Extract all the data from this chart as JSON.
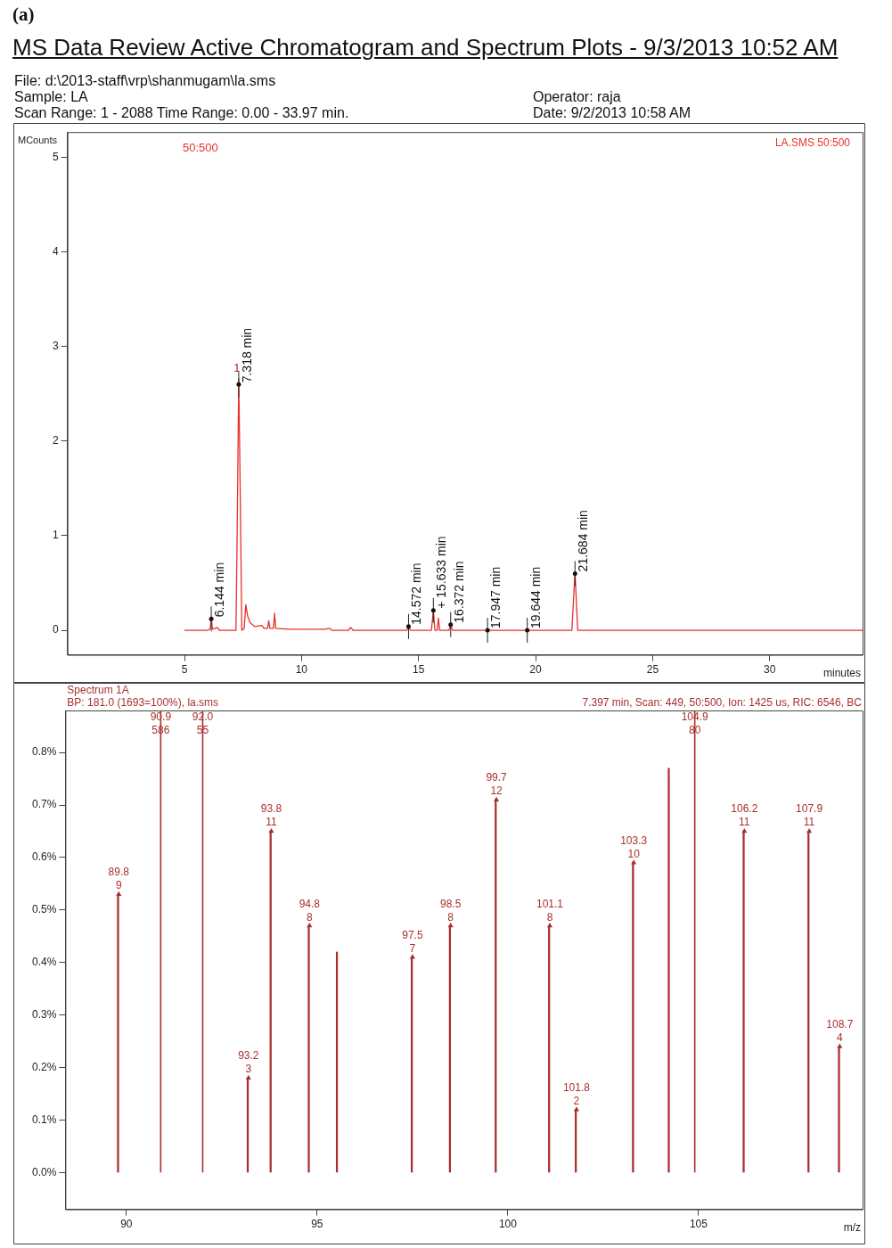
{
  "chart_data": [
    {
      "type": "line",
      "title": "MS Data Review Active Chromatogram and Spectrum Plots - 9/3/2013 10:52 AM",
      "xlabel": "minutes",
      "ylabel": "MCounts",
      "series": [
        {
          "name": "LA.SMS 50:500",
          "color": "#e8302c",
          "x": [
            5.0,
            6.0,
            6.1,
            6.144,
            6.2,
            6.4,
            6.5,
            7.2,
            7.25,
            7.318,
            7.38,
            7.45,
            7.55,
            7.62,
            7.7,
            7.8,
            8.0,
            8.3,
            8.4,
            8.55,
            8.6,
            8.65,
            8.8,
            8.85,
            8.9,
            9.5,
            11.0,
            11.2,
            11.3,
            12.0,
            12.1,
            12.2,
            14.5,
            14.572,
            14.65,
            15.55,
            15.633,
            15.7,
            15.8,
            15.85,
            15.9,
            16.3,
            16.372,
            16.45,
            17.947,
            19.644,
            21.55,
            21.684,
            21.8,
            33.97
          ],
          "values": [
            0.0,
            0.0,
            0.02,
            0.12,
            0.01,
            0.03,
            0.0,
            0.0,
            1.0,
            2.66,
            1.5,
            0.0,
            0.02,
            0.27,
            0.15,
            0.08,
            0.04,
            0.05,
            0.02,
            0.02,
            0.1,
            0.02,
            0.02,
            0.18,
            0.02,
            0.01,
            0.01,
            0.02,
            0.0,
            0.0,
            0.03,
            0.0,
            0.0,
            0.04,
            0.0,
            0.0,
            0.21,
            0.0,
            0.0,
            0.13,
            0.0,
            0.0,
            0.06,
            0.0,
            0.0,
            0.0,
            0.0,
            0.61,
            0.0,
            0.0
          ]
        }
      ],
      "xlim": [
        0,
        33.97
      ],
      "ylim": [
        -0.26,
        5.27
      ],
      "xticks": [
        5,
        10,
        15,
        20,
        25,
        30
      ],
      "yticks": [
        0,
        1,
        2,
        3,
        4,
        5
      ],
      "legend": "top right",
      "marker": "none",
      "line_style": "solid",
      "annotations": [
        "(a)",
        "File: d:\\2013-staff\\vrp\\shanmugam\\la.sms",
        "Sample: LA",
        "Operator: raja",
        "Scan Range: 1 - 2088 Time Range: 0.00 - 33.97 min.",
        "Date: 9/2/2013 10:58 AM",
        "50:500",
        {
          "text": "1",
          "x": 7.318,
          "y": 2.66
        },
        {
          "text": "6.144 min",
          "x": 6.144,
          "y": 0.12
        },
        {
          "text": "7.318 min",
          "x": 7.318,
          "y": 2.6
        },
        {
          "text": "14.572 min",
          "x": 14.572,
          "y": 0.04
        },
        {
          "text": "+ 15.633 min",
          "x": 15.633,
          "y": 0.21
        },
        {
          "text": "16.372 min",
          "x": 16.372,
          "y": 0.06
        },
        {
          "text": "17.947 min",
          "x": 17.947,
          "y": 0.0
        },
        {
          "text": "19.644 min",
          "x": 19.644,
          "y": 0.0
        },
        {
          "text": "21.684 min",
          "x": 21.684,
          "y": 0.6
        }
      ]
    },
    {
      "type": "bar",
      "title": "Spectrum 1A",
      "subtitle": "BP: 181.0 (1693=100%), la.sms",
      "xlabel": "m/z",
      "marker": "triangle",
      "series": [
        {
          "type": "lollipop",
          "color": "#a8302c",
          "x": [
            89.8,
            93.2,
            93.8,
            94.8,
            97.5,
            98.5,
            99.7,
            101.1,
            101.8,
            103.3,
            106.2,
            107.9,
            108.7
          ],
          "values": [
            0.53,
            0.18,
            0.65,
            0.47,
            0.41,
            0.47,
            0.71,
            0.47,
            0.12,
            0.59,
            0.65,
            0.65,
            0.24
          ]
        },
        {
          "color": "#a8302c",
          "x": [
            95.5,
            104.2
          ],
          "values": [
            0.42,
            0.77
          ]
        }
      ],
      "ref_lines": [
        {
          "axis": "x",
          "value": 90.9,
          "label": "90.9\n586",
          "color": "#a8302c"
        },
        {
          "axis": "x",
          "value": 92.0,
          "label": "92.0\n55",
          "color": "#a8302c"
        },
        {
          "axis": "x",
          "value": 104.9,
          "label": "104.9\n80",
          "color": "#a8302c"
        }
      ],
      "xlim": [
        88.4,
        109.3
      ],
      "ylim": [
        -0.07,
        0.88
      ],
      "xticks": [
        90,
        95,
        100,
        105
      ],
      "yticks": [
        {
          "value": 0,
          "label": "0.0%"
        },
        {
          "value": 0.1,
          "label": "0.1%"
        },
        {
          "value": 0.2,
          "label": "0.2%"
        },
        {
          "value": 0.3,
          "label": "0.3%"
        },
        {
          "value": 0.4,
          "label": "0.4%"
        },
        {
          "value": 0.5,
          "label": "0.5%"
        },
        {
          "value": 0.6,
          "label": "0.6%"
        },
        {
          "value": 0.7,
          "label": "0.7%"
        },
        {
          "value": 0.8,
          "label": "0.8%"
        }
      ],
      "annotations": [
        "7.397 min, Scan: 449, 50:500, Ion: 1425 us, RIC: 6546, BC",
        {
          "text": "89.8\n9",
          "x": 89.8,
          "y": 0.53
        },
        {
          "text": "93.2\n3",
          "x": 93.2,
          "y": 0.18
        },
        {
          "text": "93.8\n11",
          "x": 93.8,
          "y": 0.65
        },
        {
          "text": "94.8\n8",
          "x": 94.8,
          "y": 0.47
        },
        {
          "text": "97.5\n7",
          "x": 97.5,
          "y": 0.41
        },
        {
          "text": "98.5\n8",
          "x": 98.5,
          "y": 0.47
        },
        {
          "text": "99.7\n12",
          "x": 99.7,
          "y": 0.71
        },
        {
          "text": "101.1\n8",
          "x": 101.1,
          "y": 0.47
        },
        {
          "text": "101.8\n2",
          "x": 101.8,
          "y": 0.12
        },
        {
          "text": "103.3\n10",
          "x": 103.3,
          "y": 0.59
        },
        {
          "text": "106.2\n11",
          "x": 106.2,
          "y": 0.65
        },
        {
          "text": "107.9\n11",
          "x": 107.9,
          "y": 0.65
        },
        {
          "text": "108.7\n4",
          "x": 108.7,
          "y": 0.24
        }
      ]
    }
  ]
}
